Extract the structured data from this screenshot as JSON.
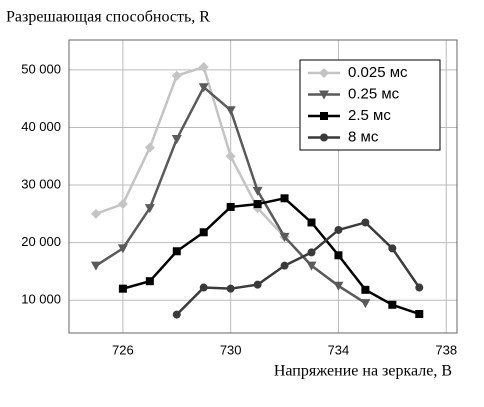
{
  "chart_data": {
    "type": "line",
    "title": "Разрешающая способность, R",
    "x_label": "Напряжение на зеркале, В",
    "x": [
      725,
      726,
      727,
      728,
      729,
      730,
      731,
      732,
      733,
      734,
      735,
      736,
      737
    ],
    "series": [
      {
        "name": "0.025 мс",
        "color": "#c4c4c4",
        "marker": "diamond",
        "values": [
          25000,
          26700,
          36500,
          49000,
          50500,
          35000,
          26000,
          21000,
          null,
          null,
          null,
          null,
          null
        ]
      },
      {
        "name": "0.25 мс",
        "color": "#5a5a5a",
        "marker": "triangle",
        "values": [
          16000,
          19000,
          26000,
          38000,
          47000,
          43000,
          29000,
          21000,
          16000,
          12500,
          9500,
          null,
          null
        ]
      },
      {
        "name": "2.5 мс",
        "color": "#000000",
        "marker": "square",
        "values": [
          null,
          12000,
          13300,
          18500,
          21800,
          26200,
          26700,
          27700,
          23500,
          17800,
          11800,
          9200,
          7600
        ]
      },
      {
        "name": "8 мс",
        "color": "#3a3a3a",
        "marker": "circle",
        "values": [
          null,
          null,
          null,
          7500,
          12200,
          12000,
          12700,
          16000,
          18300,
          22200,
          23500,
          19000,
          12200
        ]
      }
    ],
    "xlim": [
      724,
      738.4
    ],
    "ylim": [
      4300,
      55200
    ],
    "xticks": [
      726,
      730,
      734,
      738
    ],
    "yticks": [
      {
        "value": 10000,
        "label": "10 000"
      },
      {
        "value": 20000,
        "label": "20 000"
      },
      {
        "value": 30000,
        "label": "30 000"
      },
      {
        "value": 40000,
        "label": "40 000"
      },
      {
        "value": 50000,
        "label": "50 000"
      }
    ],
    "grid": true,
    "legend": "upper right"
  }
}
